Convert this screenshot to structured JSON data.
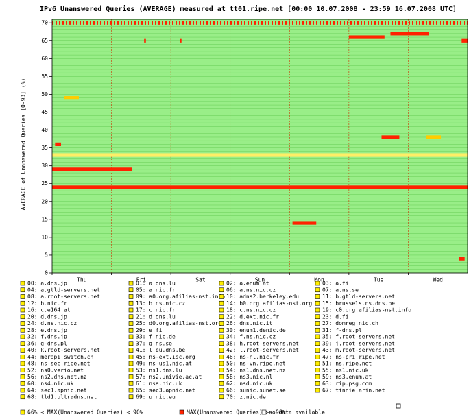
{
  "chart_data": {
    "type": "heatmap",
    "title": "IPv6 Unanswered Queries (AVERAGE)  measured at tt01.ripe.net  [00:00 10.07.2008 - 23:59 16.07.2008 UTC]",
    "y_label": "AVERAGE of Unanswered Queries [0-93] (%)",
    "categories": [
      "Thu",
      "Fri",
      "Sat",
      "Sun",
      "Mon",
      "Tue",
      "Wed"
    ],
    "xlim": [
      0,
      7
    ],
    "ylim": [
      0,
      71
    ],
    "yticks": [
      0,
      5,
      10,
      15,
      20,
      25,
      30,
      35,
      40,
      45,
      50,
      55,
      60,
      65,
      70
    ],
    "background_color": "#99ee88",
    "row_line_color": "#66cc55",
    "day_line_color": "#cc3300",
    "runs": [
      {
        "row": 24,
        "x": [
          0,
          7
        ],
        "color": "#ff2200"
      },
      {
        "row": 29,
        "x": [
          0,
          1.35
        ],
        "color": "#ff2200"
      },
      {
        "row": 66,
        "x": [
          5.0,
          5.6
        ],
        "color": "#ff2200"
      },
      {
        "row": 67,
        "x": [
          5.7,
          6.35
        ],
        "color": "#ff2200"
      },
      {
        "row": 38,
        "x": [
          5.55,
          5.85
        ],
        "color": "#ff2200"
      },
      {
        "row": 38,
        "x": [
          6.3,
          6.55
        ],
        "color": "#ffcc00"
      },
      {
        "row": 14,
        "x": [
          4.05,
          4.45
        ],
        "color": "#ff2200"
      },
      {
        "row": 49,
        "x": [
          0.2,
          0.45
        ],
        "color": "#ffcc00"
      },
      {
        "row": 36,
        "x": [
          0.05,
          0.15
        ],
        "color": "#ff2200"
      },
      {
        "row": 33,
        "x": [
          0,
          7
        ],
        "color": "#ffee66"
      },
      {
        "row": 65,
        "x": [
          1.55,
          1.58
        ],
        "color": "#ff2200"
      },
      {
        "row": 65,
        "x": [
          2.15,
          2.18
        ],
        "color": "#ff2200"
      },
      {
        "row": 65,
        "x": [
          6.9,
          7
        ],
        "color": "#ff2200"
      },
      {
        "row": 4,
        "x": [
          6.85,
          6.95
        ],
        "color": "#ff2200"
      }
    ],
    "dotted_rows": [
      {
        "row": 70,
        "x": [
          0,
          7
        ],
        "color": "#ff2200"
      }
    ],
    "legend": [
      "00: a.dns.jp",
      "01: a.dns.lu",
      "02: a.enum.at",
      "03: a.fi",
      "04: a.gtld-servers.net",
      "05: a.nic.fr",
      "06: a.ns.nic.cz",
      "07: a.ns.se",
      "08: a.root-servers.net",
      "09: a0.org.afilias-nst.info",
      "10: adns2.berkeley.edu",
      "11: b.gtld-servers.net",
      "12: b.nic.fr",
      "13: b.ns.nic.cz",
      "14: b0.org.afilias-nst.org",
      "15: brussels.ns.dns.be",
      "16: c.e164.at",
      "17: c.nic.fr",
      "18: c.ns.nic.cz",
      "19: c0.org.afilias-nst.info",
      "20: d.dns.jp",
      "21: d.dns.lu",
      "22: d.ext.nic.fr",
      "23: d.fi",
      "24: d.ns.nic.cz",
      "25: d0.org.afilias-nst.org",
      "26: dns.nic.it",
      "27: domreg.nic.ch",
      "28: e.dns.jp",
      "29: e.fi",
      "30: enum1.denic.de",
      "31: f-dns.pl",
      "32: f.dns.jp",
      "33: f.nic.de",
      "34: f.ns.nic.cz",
      "35: f.root-servers.net",
      "36: g-dns.pl",
      "37: g.ns.se",
      "38: h.root-servers.net",
      "39: j.root-servers.net",
      "40: k.root-servers.net",
      "41: l.eu.dns.be",
      "42: l.root-servers.net",
      "43: m.root-servers.net",
      "44: merapi.switch.ch",
      "45: ns-ext.isc.org",
      "46: ns-nl.nic.fr",
      "47: ns-pri.ripe.net",
      "48: ns-sec.ripe.net",
      "49: ns-us1.nic.at",
      "50: ns-vn.ripe.net",
      "51: ns.ripe.net",
      "52: ns0.verio.net",
      "53: ns1.dns.lu",
      "54: ns1.dns.net.nz",
      "55: ns1.nic.uk",
      "56: ns2.dns.net.nz",
      "57: ns2.univie.ac.at",
      "58: ns3.nic.nl",
      "59: ns3.enum.at",
      "60: ns4.nic.uk",
      "61: nsa.nic.uk",
      "62: nsd.nic.uk",
      "63: rip.psg.com",
      "64: sec1.apnic.net",
      "65: sec3.apnic.net",
      "66: sunic.sunet.se",
      "67: tinnie.arin.net",
      "68: tld1.ultradns.net",
      "69: u.nic.eu",
      "70: z.nic.de"
    ],
    "legend_box_color": "#ffee00",
    "key": [
      {
        "label": "66% < MAX(Unanswered Queries) < 90%",
        "color": "#ffee00"
      },
      {
        "label": "MAX(Unanswered Queries) >= 90%",
        "color": "#ff2200"
      },
      {
        "label": "no data available",
        "color": "#ffffff"
      }
    ]
  }
}
